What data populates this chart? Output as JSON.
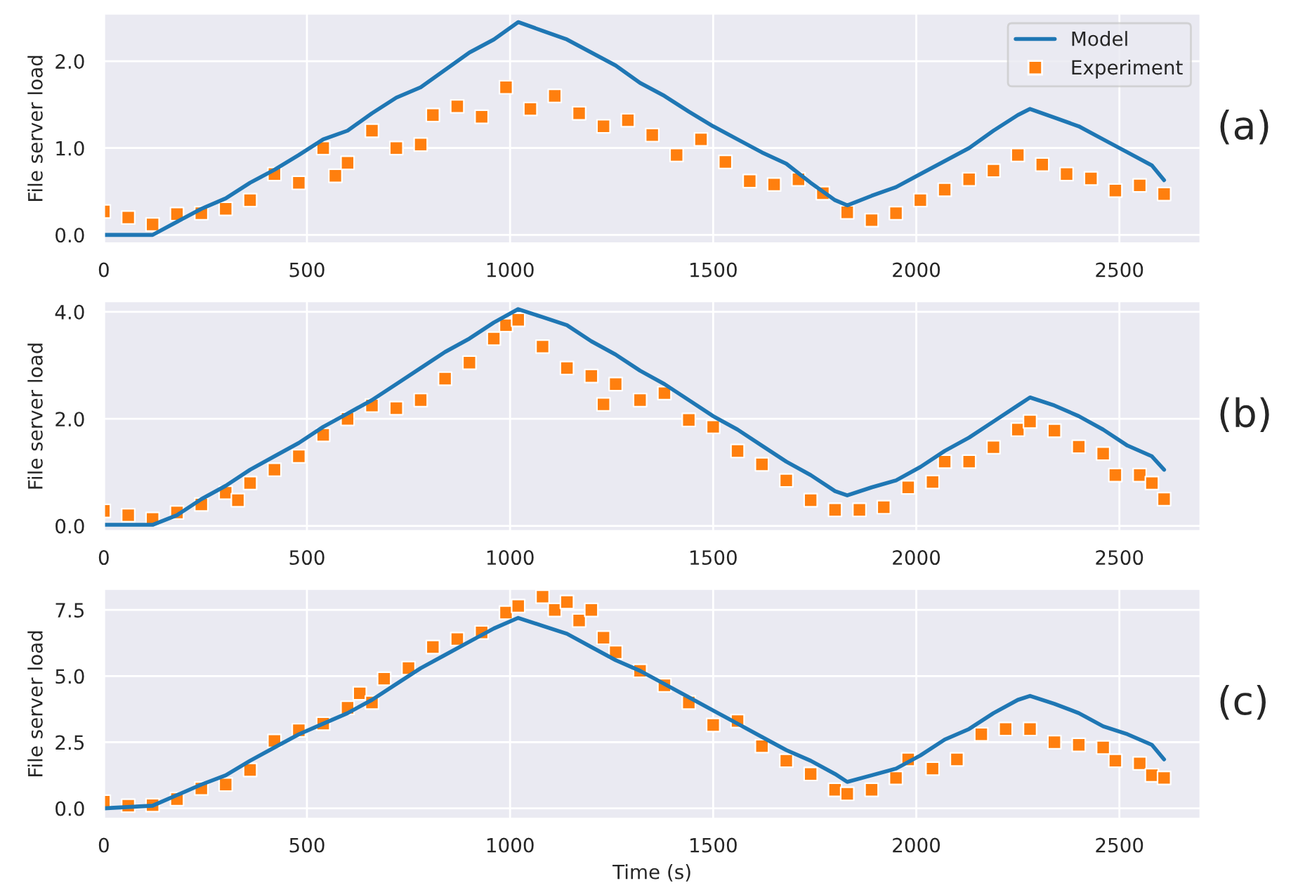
{
  "chart_data": [
    {
      "type": "line",
      "ylabel": "File server load",
      "annotations": [
        "(a)"
      ],
      "xlim": [
        0,
        2700
      ],
      "xticks": [
        0,
        500,
        1000,
        1500,
        2000,
        2500
      ],
      "ylim": [
        -0.1,
        2.55
      ],
      "yticks": [
        {
          "value": 0,
          "label": "0.0"
        },
        {
          "value": 1,
          "label": "1.0"
        },
        {
          "value": 2,
          "label": "2.0"
        }
      ],
      "grid": true,
      "legend": "top right",
      "series": [
        {
          "name": "Model",
          "color": "#1f77b4",
          "marker": "none",
          "x": [
            0,
            120,
            180,
            240,
            300,
            360,
            420,
            480,
            540,
            600,
            660,
            720,
            780,
            840,
            900,
            960,
            1020,
            1080,
            1140,
            1200,
            1260,
            1320,
            1380,
            1440,
            1500,
            1560,
            1620,
            1680,
            1740,
            1800,
            1830,
            1890,
            1950,
            2010,
            2070,
            2130,
            2190,
            2250,
            2280,
            2340,
            2400,
            2460,
            2520,
            2580,
            2610
          ],
          "values": [
            0,
            0,
            0.15,
            0.3,
            0.42,
            0.6,
            0.75,
            0.92,
            1.1,
            1.2,
            1.4,
            1.58,
            1.7,
            1.9,
            2.1,
            2.25,
            2.45,
            2.35,
            2.25,
            2.1,
            1.95,
            1.75,
            1.6,
            1.42,
            1.25,
            1.1,
            0.95,
            0.82,
            0.6,
            0.4,
            0.34,
            0.45,
            0.55,
            0.7,
            0.85,
            1.0,
            1.2,
            1.38,
            1.45,
            1.35,
            1.25,
            1.1,
            0.95,
            0.8,
            0.63
          ]
        },
        {
          "name": "Experiment",
          "type": "scatter",
          "color": "#ff7f0e",
          "marker": "square",
          "x": [
            0,
            60,
            120,
            180,
            240,
            300,
            360,
            420,
            480,
            540,
            570,
            600,
            660,
            720,
            780,
            810,
            870,
            930,
            990,
            1050,
            1110,
            1170,
            1230,
            1290,
            1350,
            1410,
            1470,
            1530,
            1590,
            1650,
            1710,
            1770,
            1830,
            1890,
            1950,
            2010,
            2070,
            2130,
            2190,
            2250,
            2310,
            2370,
            2430,
            2490,
            2550,
            2610
          ],
          "values": [
            0.27,
            0.2,
            0.12,
            0.24,
            0.25,
            0.3,
            0.4,
            0.7,
            0.6,
            1.0,
            0.68,
            0.83,
            1.2,
            1.0,
            1.04,
            1.38,
            1.48,
            1.36,
            1.7,
            1.45,
            1.6,
            1.4,
            1.25,
            1.32,
            1.15,
            0.92,
            1.1,
            0.84,
            0.62,
            0.58,
            0.64,
            0.48,
            0.26,
            0.17,
            0.25,
            0.4,
            0.52,
            0.64,
            0.74,
            0.92,
            0.81,
            0.7,
            0.65,
            0.51,
            0.57,
            0.47
          ]
        }
      ]
    },
    {
      "type": "line",
      "ylabel": "File server load",
      "annotations": [
        "(b)"
      ],
      "xlim": [
        0,
        2700
      ],
      "xticks": [
        0,
        500,
        1000,
        1500,
        2000,
        2500
      ],
      "ylim": [
        -0.1,
        4.2
      ],
      "yticks": [
        {
          "value": 0,
          "label": "0.0"
        },
        {
          "value": 2,
          "label": "2.0"
        },
        {
          "value": 4,
          "label": "4.0"
        }
      ],
      "grid": true,
      "series": [
        {
          "color": "#1f77b4",
          "marker": "none",
          "x": [
            0,
            120,
            180,
            240,
            300,
            360,
            420,
            480,
            540,
            600,
            660,
            720,
            780,
            840,
            900,
            960,
            1020,
            1080,
            1140,
            1200,
            1260,
            1320,
            1380,
            1440,
            1500,
            1560,
            1620,
            1680,
            1740,
            1800,
            1830,
            1890,
            1950,
            2010,
            2070,
            2130,
            2190,
            2250,
            2280,
            2340,
            2400,
            2460,
            2520,
            2580,
            2610
          ],
          "values": [
            0.02,
            0.02,
            0.2,
            0.5,
            0.75,
            1.05,
            1.3,
            1.55,
            1.85,
            2.1,
            2.35,
            2.65,
            2.95,
            3.25,
            3.5,
            3.8,
            4.05,
            3.9,
            3.75,
            3.45,
            3.2,
            2.9,
            2.65,
            2.35,
            2.05,
            1.8,
            1.5,
            1.2,
            0.95,
            0.65,
            0.57,
            0.72,
            0.85,
            1.1,
            1.4,
            1.65,
            1.95,
            2.25,
            2.4,
            2.25,
            2.05,
            1.8,
            1.5,
            1.3,
            1.05
          ]
        },
        {
          "type": "scatter",
          "color": "#ff7f0e",
          "marker": "square",
          "x": [
            0,
            60,
            120,
            180,
            240,
            300,
            330,
            360,
            420,
            480,
            540,
            600,
            660,
            720,
            780,
            840,
            900,
            960,
            990,
            1020,
            1080,
            1140,
            1200,
            1230,
            1260,
            1320,
            1380,
            1440,
            1500,
            1560,
            1620,
            1680,
            1740,
            1800,
            1860,
            1920,
            1980,
            2040,
            2070,
            2130,
            2190,
            2250,
            2280,
            2340,
            2400,
            2460,
            2490,
            2550,
            2580,
            2610
          ],
          "values": [
            0.28,
            0.2,
            0.13,
            0.25,
            0.4,
            0.62,
            0.48,
            0.8,
            1.05,
            1.3,
            1.7,
            2.0,
            2.25,
            2.2,
            2.35,
            2.75,
            3.05,
            3.5,
            3.75,
            3.85,
            3.35,
            2.95,
            2.8,
            2.27,
            2.65,
            2.35,
            2.48,
            1.98,
            1.85,
            1.4,
            1.15,
            0.85,
            0.48,
            0.3,
            0.3,
            0.35,
            0.72,
            0.82,
            1.2,
            1.2,
            1.47,
            1.8,
            1.95,
            1.78,
            1.48,
            1.35,
            0.95,
            0.95,
            0.8,
            0.5
          ]
        }
      ]
    },
    {
      "type": "line",
      "xlabel": "Time (s)",
      "ylabel": "File server load",
      "annotations": [
        "(c)"
      ],
      "xlim": [
        0,
        2700
      ],
      "xticks": [
        0,
        500,
        1000,
        1500,
        2000,
        2500
      ],
      "ylim": [
        -0.4,
        8.3
      ],
      "yticks": [
        {
          "value": 0,
          "label": "0.0"
        },
        {
          "value": 2.5,
          "label": "2.5"
        },
        {
          "value": 5,
          "label": "5.0"
        },
        {
          "value": 7.5,
          "label": "7.5"
        }
      ],
      "grid": true,
      "series": [
        {
          "color": "#1f77b4",
          "marker": "none",
          "x": [
            0,
            120,
            180,
            240,
            300,
            360,
            420,
            480,
            540,
            600,
            660,
            720,
            780,
            840,
            900,
            960,
            1020,
            1080,
            1140,
            1200,
            1260,
            1320,
            1380,
            1440,
            1500,
            1560,
            1620,
            1680,
            1740,
            1800,
            1830,
            1890,
            1950,
            2010,
            2070,
            2130,
            2190,
            2250,
            2280,
            2340,
            2400,
            2460,
            2520,
            2580,
            2610
          ],
          "values": [
            0,
            0.1,
            0.5,
            0.9,
            1.25,
            1.8,
            2.3,
            2.8,
            3.2,
            3.6,
            4.1,
            4.7,
            5.3,
            5.8,
            6.3,
            6.8,
            7.2,
            6.9,
            6.6,
            6.1,
            5.6,
            5.2,
            4.7,
            4.2,
            3.7,
            3.2,
            2.7,
            2.2,
            1.8,
            1.3,
            1.0,
            1.25,
            1.5,
            2.0,
            2.6,
            3.0,
            3.6,
            4.1,
            4.25,
            3.95,
            3.6,
            3.1,
            2.8,
            2.4,
            1.85
          ]
        },
        {
          "type": "scatter",
          "color": "#ff7f0e",
          "marker": "square",
          "x": [
            0,
            60,
            120,
            180,
            240,
            300,
            360,
            420,
            480,
            540,
            600,
            630,
            660,
            690,
            750,
            810,
            870,
            930,
            990,
            1020,
            1080,
            1110,
            1140,
            1170,
            1200,
            1230,
            1260,
            1320,
            1380,
            1440,
            1500,
            1560,
            1620,
            1680,
            1740,
            1800,
            1830,
            1890,
            1950,
            1980,
            2040,
            2100,
            2160,
            2220,
            2280,
            2340,
            2400,
            2460,
            2490,
            2550,
            2580,
            2610
          ],
          "values": [
            0.25,
            0.1,
            0.12,
            0.35,
            0.75,
            0.9,
            1.45,
            2.55,
            2.95,
            3.2,
            3.8,
            4.35,
            4.0,
            4.9,
            5.3,
            6.1,
            6.4,
            6.65,
            7.4,
            7.65,
            8.0,
            7.5,
            7.8,
            7.1,
            7.5,
            6.45,
            5.9,
            5.2,
            4.65,
            4.0,
            3.15,
            3.3,
            2.35,
            1.8,
            1.3,
            0.7,
            0.55,
            0.7,
            1.15,
            1.85,
            1.5,
            1.85,
            2.8,
            3.0,
            3.0,
            2.5,
            2.4,
            2.3,
            1.8,
            1.7,
            1.25,
            1.15
          ]
        }
      ]
    }
  ]
}
